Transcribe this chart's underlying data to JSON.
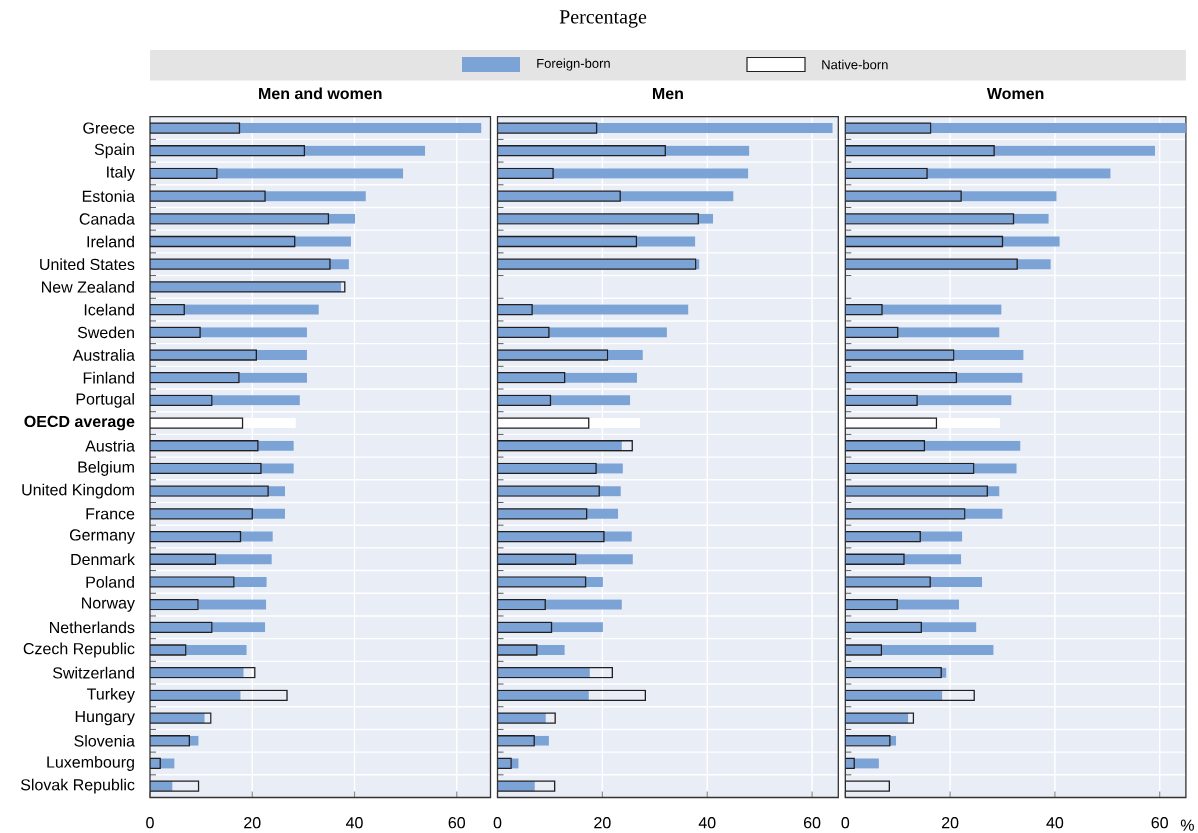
{
  "chart_data": [
    {
      "type": "bar",
      "title": "Men and women",
      "orientation": "horizontal",
      "legend": "top",
      "grid": true,
      "categories": [
        "Greece",
        "Spain",
        "Italy",
        "Estonia",
        "Canada",
        "Ireland",
        "United States",
        "New Zealand",
        "Iceland",
        "Sweden",
        "Australia",
        "Finland",
        "Portugal",
        "**OECD average**",
        "Austria",
        "Belgium",
        "United Kingdom",
        "France",
        "Germany",
        "Denmark",
        "Poland",
        "Norway",
        "Netherlands",
        "Czech Republic",
        "Switzerland",
        "Turkey",
        "Hungary",
        "Slovenia",
        "Luxembourg",
        "Slovak Republic"
      ],
      "series": [
        {
          "name": "Foreign-born",
          "color": "#7ca3d6",
          "colors": [
            "#7ca3d6",
            "#7ca3d6",
            "#7ca3d6",
            "#7ca3d6",
            "#7ca3d6",
            "#7ca3d6",
            "#7ca3d6",
            "#7ca3d6",
            "#7ca3d6",
            "#7ca3d6",
            "#7ca3d6",
            "#7ca3d6",
            "#7ca3d6",
            "#ffffff",
            "#7ca3d6",
            "#7ca3d6",
            "#7ca3d6",
            "#7ca3d6",
            "#7ca3d6",
            "#7ca3d6",
            "#7ca3d6",
            "#7ca3d6",
            "#7ca3d6",
            "#7ca3d6",
            "#7ca3d6",
            "#7ca3d6",
            "#7ca3d6",
            "#7ca3d6",
            "#7ca3d6",
            "#7ca3d6"
          ],
          "values": [
            64.8,
            53.8,
            49.5,
            42.2,
            40.1,
            39.3,
            38.9,
            37.4,
            33.0,
            30.7,
            30.7,
            30.7,
            29.3,
            28.5,
            28.1,
            28.1,
            26.4,
            26.4,
            24.0,
            23.8,
            22.8,
            22.7,
            22.5,
            18.9,
            18.3,
            17.7,
            10.7,
            9.5,
            4.8,
            4.4
          ]
        },
        {
          "name": "Native-born",
          "color": "#231f20",
          "values": [
            17.5,
            30.2,
            13.1,
            22.5,
            34.9,
            28.3,
            35.2,
            38.1,
            6.7,
            9.8,
            20.8,
            17.4,
            12.1,
            18.1,
            21.1,
            21.7,
            23.1,
            20.0,
            17.7,
            12.8,
            16.4,
            9.4,
            12.1,
            7.0,
            20.5,
            26.8,
            11.9,
            7.7,
            2.0,
            9.5
          ]
        }
      ],
      "xlim": [
        0,
        66.6
      ],
      "xticks": [
        0,
        20,
        40,
        60
      ]
    },
    {
      "type": "bar",
      "title": "Men",
      "subtitle": "Percentage",
      "orientation": "horizontal",
      "grid": true,
      "tick_labels": "x",
      "categories": [
        null,
        null,
        null,
        null,
        null,
        null,
        null,
        null,
        null,
        null,
        null,
        null,
        null,
        null,
        null,
        null,
        null,
        null,
        null,
        null,
        null,
        null,
        null,
        null,
        null,
        null,
        null,
        null,
        null,
        null
      ],
      "series": [
        {
          "colors": [
            "#7ca3d6",
            "#7ca3d6",
            "#7ca3d6",
            "#7ca3d6",
            "#7ca3d6",
            "#7ca3d6",
            "#7ca3d6",
            "#7ca3d6",
            "#7ca3d6",
            "#7ca3d6",
            "#7ca3d6",
            "#7ca3d6",
            "#7ca3d6",
            "#ffffff",
            "#7ca3d6",
            "#7ca3d6",
            "#7ca3d6",
            "#7ca3d6",
            "#7ca3d6",
            "#7ca3d6",
            "#7ca3d6",
            "#7ca3d6",
            "#7ca3d6",
            "#7ca3d6",
            "#7ca3d6",
            "#7ca3d6",
            "#7ca3d6",
            "#7ca3d6",
            "#7ca3d6",
            "#7ca3d6"
          ],
          "values": [
            63.9,
            48.0,
            47.8,
            45.0,
            41.1,
            37.7,
            38.5,
            null,
            36.4,
            32.3,
            27.7,
            26.6,
            25.3,
            27.2,
            23.7,
            23.9,
            23.5,
            23.0,
            25.6,
            25.8,
            20.1,
            23.7,
            20.1,
            12.8,
            17.6,
            17.4,
            9.2,
            9.8,
            4.0,
            7.1
          ]
        },
        {
          "color": "#231f20",
          "values": [
            18.9,
            32.0,
            10.6,
            23.4,
            38.3,
            26.5,
            37.8,
            null,
            6.6,
            9.8,
            21.0,
            12.8,
            10.1,
            17.4,
            25.7,
            18.8,
            19.4,
            17.0,
            20.3,
            14.9,
            16.8,
            9.1,
            10.3,
            7.5,
            21.9,
            28.2,
            11.0,
            7.0,
            2.6,
            10.9
          ]
        }
      ],
      "xlim": [
        0,
        65
      ],
      "xticks": [
        0,
        20,
        40,
        60
      ]
    },
    {
      "type": "bar",
      "title": "Women",
      "xlabel": "%",
      "orientation": "horizontal",
      "grid": true,
      "tick_labels": "x",
      "categories": [
        null,
        null,
        null,
        null,
        null,
        null,
        null,
        null,
        null,
        null,
        null,
        null,
        null,
        null,
        null,
        null,
        null,
        null,
        null,
        null,
        null,
        null,
        null,
        null,
        null,
        null,
        null,
        null,
        null,
        null
      ],
      "series": [
        {
          "colors": [
            "#7ca3d6",
            "#7ca3d6",
            "#7ca3d6",
            "#7ca3d6",
            "#7ca3d6",
            "#7ca3d6",
            "#7ca3d6",
            "#7ca3d6",
            "#7ca3d6",
            "#7ca3d6",
            "#7ca3d6",
            "#7ca3d6",
            "#7ca3d6",
            "#ffffff",
            "#7ca3d6",
            "#7ca3d6",
            "#7ca3d6",
            "#7ca3d6",
            "#7ca3d6",
            "#7ca3d6",
            "#7ca3d6",
            "#7ca3d6",
            "#7ca3d6",
            "#7ca3d6",
            "#7ca3d6",
            "#7ca3d6",
            "#7ca3d6",
            "#7ca3d6",
            "#7ca3d6",
            "#7ca3d6"
          ],
          "values": [
            65,
            59.1,
            50.6,
            40.3,
            38.8,
            40.9,
            39.2,
            null,
            29.8,
            29.4,
            34.0,
            33.8,
            31.7,
            29.5,
            33.4,
            32.7,
            29.4,
            30.0,
            22.3,
            22.1,
            26.1,
            21.7,
            25.0,
            28.3,
            19.3,
            18.5,
            12.0,
            9.7,
            6.4,
            null
          ]
        },
        {
          "color": "#231f20",
          "values": [
            16.3,
            28.4,
            15.6,
            22.1,
            32.1,
            30.0,
            32.8,
            null,
            7.0,
            10.0,
            20.7,
            21.2,
            13.7,
            17.4,
            15.1,
            24.5,
            27.1,
            22.8,
            14.3,
            11.2,
            16.2,
            9.9,
            14.5,
            6.9,
            18.3,
            24.6,
            13.0,
            8.5,
            1.7,
            8.4
          ]
        }
      ],
      "xlim": [
        0,
        65
      ],
      "xticks": [
        0,
        20,
        40,
        60
      ]
    }
  ]
}
